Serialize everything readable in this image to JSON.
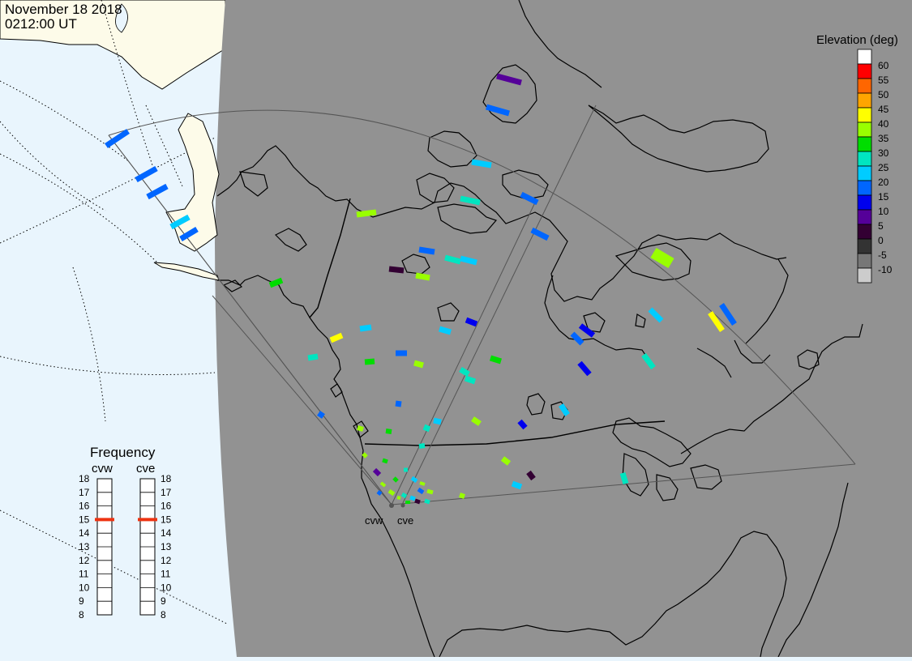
{
  "header": {
    "date": "November 18 2018",
    "time": "0212:00 UT"
  },
  "elevation_scale": {
    "title": "Elevation (deg)",
    "levels": [
      {
        "label": "60",
        "color": "#ffffff"
      },
      {
        "label": "55",
        "color": "#ff0000"
      },
      {
        "label": "50",
        "color": "#ff6600"
      },
      {
        "label": "45",
        "color": "#ffa500"
      },
      {
        "label": "40",
        "color": "#ffff00"
      },
      {
        "label": "35",
        "color": "#99ff00"
      },
      {
        "label": "30",
        "color": "#00dd00"
      },
      {
        "label": "25",
        "color": "#00e5c0"
      },
      {
        "label": "20",
        "color": "#00ccff"
      },
      {
        "label": "15",
        "color": "#0066ff"
      },
      {
        "label": "10",
        "color": "#0000ee"
      },
      {
        "label": "5",
        "color": "#550099"
      },
      {
        "label": "0",
        "color": "#330033"
      },
      {
        "label": "-5",
        "color": "#333333"
      },
      {
        "label": "-10",
        "color": "#777777"
      },
      {
        "label": "",
        "color": "#cccccc"
      }
    ]
  },
  "frequency": {
    "title": "Frequency",
    "ticks": [
      "18",
      "17",
      "16",
      "15",
      "14",
      "13",
      "12",
      "11",
      "10",
      "9",
      "8"
    ],
    "min": 8,
    "max": 18,
    "radars": [
      {
        "id": "cvw",
        "label": "cvw",
        "value": 15
      },
      {
        "id": "cve",
        "label": "cve",
        "value": 15
      }
    ],
    "marker_color": "#ee3311"
  },
  "sites": [
    {
      "id": "cvw",
      "label": "cvw"
    },
    {
      "id": "cve",
      "label": "cve"
    }
  ],
  "map_colors": {
    "ocean": "#e9f5fd",
    "night_land": "#929292",
    "day_land": "#fdfbe9",
    "coast": "#000000",
    "fov": "#555555"
  }
}
